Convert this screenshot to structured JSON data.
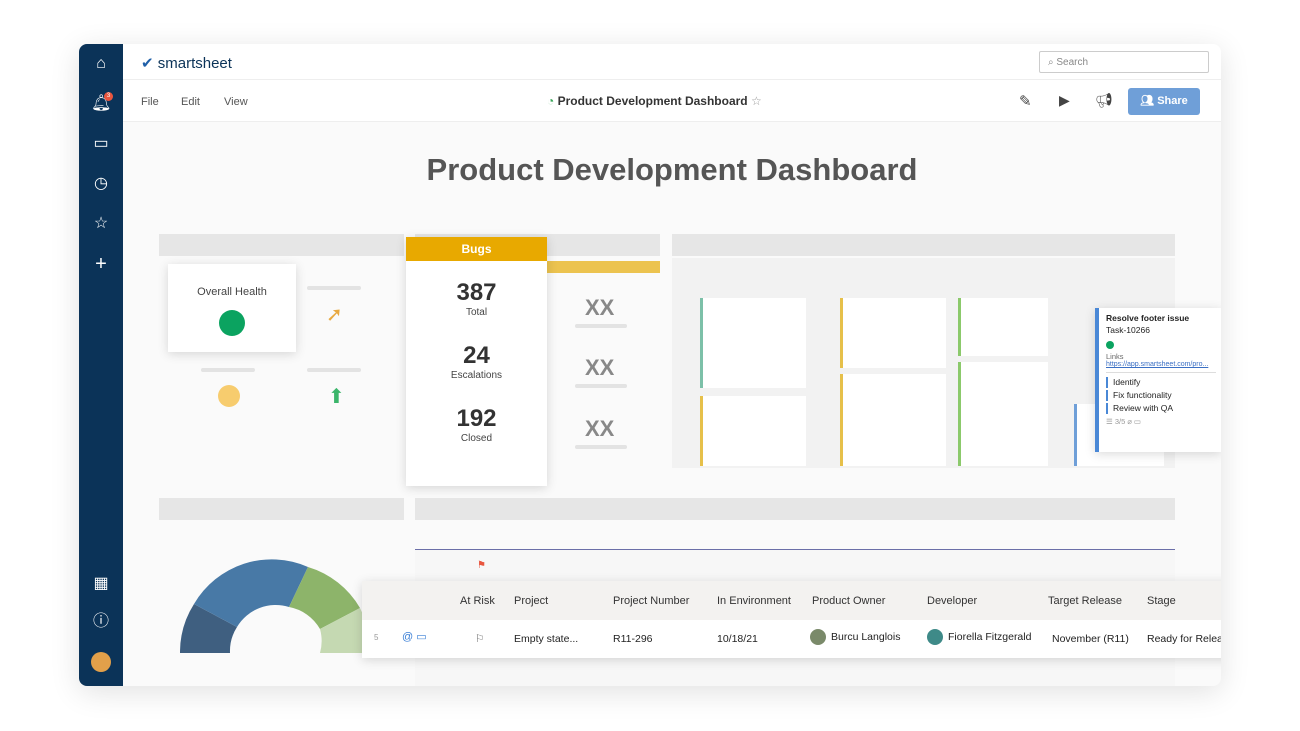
{
  "app": {
    "logo": "smartsheet",
    "search_placeholder": "Search",
    "notification_count": "3"
  },
  "menu": [
    "File",
    "Edit",
    "View"
  ],
  "toolbar": {
    "sheet_title": "Product Development Dashboard",
    "share_label": "Share"
  },
  "dashboard": {
    "title": "Product Development Dashboard",
    "health": {
      "label": "Overall Health"
    },
    "bugs": {
      "header": "Bugs",
      "stats": [
        {
          "value": "387",
          "label": "Total"
        },
        {
          "value": "24",
          "label": "Escalations"
        },
        {
          "value": "192",
          "label": "Closed"
        }
      ]
    },
    "placeholders": [
      "XX",
      "XX",
      "XX"
    ],
    "task_popup": {
      "title": "Resolve footer issue",
      "id": "Task-10266",
      "links_label": "Links",
      "link": "https://app.smartsheet.com/pro...",
      "subtasks": [
        "Identify",
        "Fix functionality",
        "Review with QA"
      ],
      "progress": "3/5"
    }
  },
  "table": {
    "headers": [
      "At Risk",
      "Project",
      "Project Number",
      "In Environment",
      "Product Owner",
      "Developer",
      "Target Release",
      "Stage"
    ],
    "row": {
      "num": "5",
      "project": "Empty state...",
      "project_number": "R11-296",
      "environment": "10/18/21",
      "owner": "Burcu Langlois",
      "developer": "Fiorella Fitzgerald",
      "release": "November (R11)",
      "stage": "Ready for Release"
    }
  },
  "colors": {
    "navy": "#0b3358",
    "amber": "#e8a900",
    "green": "#0ba360",
    "share": "#6f9fd8"
  }
}
